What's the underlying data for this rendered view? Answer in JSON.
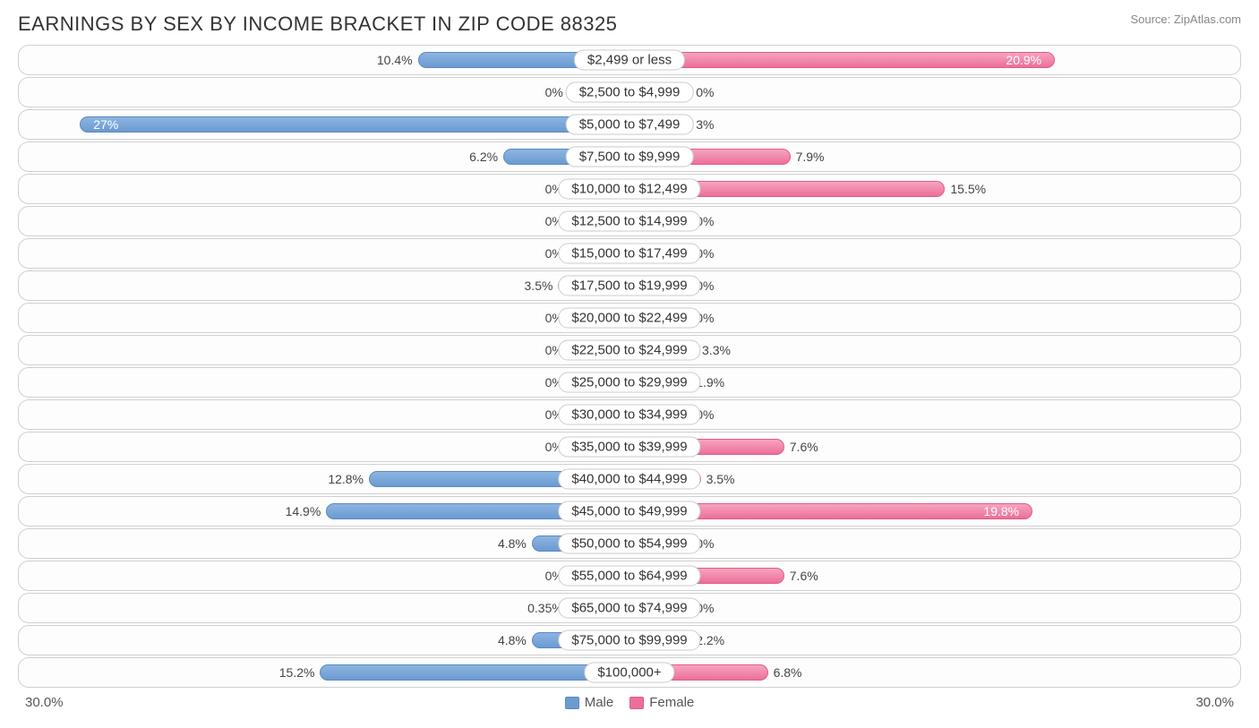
{
  "title": "EARNINGS BY SEX BY INCOME BRACKET IN ZIP CODE 88325",
  "source": "Source: ZipAtlas.com",
  "axis_max_pct": 30.0,
  "axis_label_left": "30.0%",
  "axis_label_right": "30.0%",
  "legend": {
    "male": "Male",
    "female": "Female"
  },
  "colors": {
    "male_bar": "#6b9bd1",
    "female_bar": "#ec6f99",
    "row_border": "#d0d0d0",
    "text": "#333333",
    "background": "#ffffff"
  },
  "min_bar_pct": 3.0,
  "rows": [
    {
      "label": "$2,499 or less",
      "male": 10.4,
      "female": 20.9,
      "male_inside": false,
      "female_inside": true
    },
    {
      "label": "$2,500 to $4,999",
      "male": 0.0,
      "female": 0.0,
      "male_inside": false,
      "female_inside": false
    },
    {
      "label": "$5,000 to $7,499",
      "male": 27.0,
      "female": 3.0,
      "male_inside": true,
      "female_inside": false
    },
    {
      "label": "$7,500 to $9,999",
      "male": 6.2,
      "female": 7.9,
      "male_inside": false,
      "female_inside": false
    },
    {
      "label": "$10,000 to $12,499",
      "male": 0.0,
      "female": 15.5,
      "male_inside": false,
      "female_inside": false
    },
    {
      "label": "$12,500 to $14,999",
      "male": 0.0,
      "female": 0.0,
      "male_inside": false,
      "female_inside": false
    },
    {
      "label": "$15,000 to $17,499",
      "male": 0.0,
      "female": 0.0,
      "male_inside": false,
      "female_inside": false
    },
    {
      "label": "$17,500 to $19,999",
      "male": 3.5,
      "female": 0.0,
      "male_inside": false,
      "female_inside": false
    },
    {
      "label": "$20,000 to $22,499",
      "male": 0.0,
      "female": 0.0,
      "male_inside": false,
      "female_inside": false
    },
    {
      "label": "$22,500 to $24,999",
      "male": 0.0,
      "female": 3.3,
      "male_inside": false,
      "female_inside": false
    },
    {
      "label": "$25,000 to $29,999",
      "male": 0.0,
      "female": 1.9,
      "male_inside": false,
      "female_inside": false
    },
    {
      "label": "$30,000 to $34,999",
      "male": 0.0,
      "female": 0.0,
      "male_inside": false,
      "female_inside": false
    },
    {
      "label": "$35,000 to $39,999",
      "male": 0.0,
      "female": 7.6,
      "male_inside": false,
      "female_inside": false
    },
    {
      "label": "$40,000 to $44,999",
      "male": 12.8,
      "female": 3.5,
      "male_inside": false,
      "female_inside": false
    },
    {
      "label": "$45,000 to $49,999",
      "male": 14.9,
      "female": 19.8,
      "male_inside": false,
      "female_inside": true
    },
    {
      "label": "$50,000 to $54,999",
      "male": 4.8,
      "female": 0.0,
      "male_inside": false,
      "female_inside": false
    },
    {
      "label": "$55,000 to $64,999",
      "male": 0.0,
      "female": 7.6,
      "male_inside": false,
      "female_inside": false
    },
    {
      "label": "$65,000 to $74,999",
      "male": 0.35,
      "female": 0.0,
      "male_inside": false,
      "female_inside": false
    },
    {
      "label": "$75,000 to $99,999",
      "male": 4.8,
      "female": 2.2,
      "male_inside": false,
      "female_inside": false
    },
    {
      "label": "$100,000+",
      "male": 15.2,
      "female": 6.8,
      "male_inside": false,
      "female_inside": false
    }
  ]
}
